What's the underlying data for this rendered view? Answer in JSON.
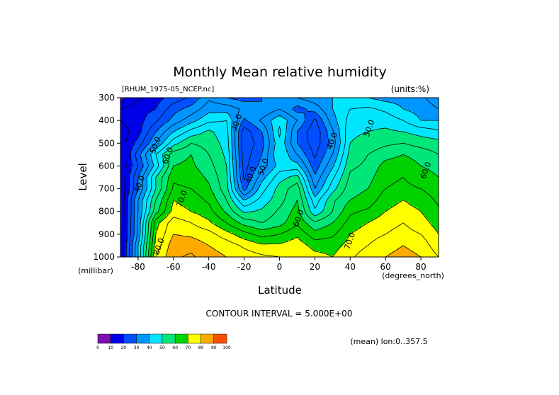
{
  "chart_data": {
    "type": "contour",
    "title": "Monthly Mean relative humidity",
    "dataset_label": "[RHUM_1975-05_NCEP.nc]",
    "units_label": "(units:%)",
    "xlabel": "Latitude",
    "x_units": "(degrees_north)",
    "ylabel": "Level",
    "y_units": "(millibar)",
    "xlim": [
      -90,
      90
    ],
    "ylim": [
      1000,
      300
    ],
    "x_ticks": [
      -80,
      -60,
      -40,
      -20,
      0,
      20,
      40,
      60,
      80
    ],
    "y_ticks": [
      300,
      400,
      500,
      600,
      700,
      800,
      900,
      1000
    ],
    "contour_interval_text": "CONTOUR INTERVAL = 5.000E+00",
    "mean_note": "(mean) lon:0..357.5",
    "grid_lat": [
      -90,
      -80,
      -70,
      -60,
      -50,
      -40,
      -30,
      -20,
      -10,
      0,
      10,
      20,
      30,
      40,
      50,
      60,
      70,
      80,
      90
    ],
    "grid_lev": [
      300,
      350,
      400,
      450,
      500,
      550,
      600,
      650,
      700,
      750,
      800,
      850,
      900,
      950,
      1000
    ],
    "values": [
      [
        8,
        14,
        18,
        22,
        26,
        34,
        30,
        28,
        30,
        34,
        35,
        38,
        40,
        40,
        40,
        38,
        38,
        36,
        32
      ],
      [
        15,
        18,
        20,
        28,
        32,
        38,
        38,
        34,
        30,
        35,
        28,
        32,
        40,
        45,
        46,
        44,
        40,
        38,
        35
      ],
      [
        15,
        18,
        24,
        32,
        38,
        44,
        45,
        29,
        36,
        44,
        35,
        24,
        38,
        47,
        48,
        48,
        45,
        40,
        40
      ],
      [
        12,
        18,
        30,
        40,
        47,
        51,
        47,
        22,
        30,
        46,
        30,
        21,
        34,
        49,
        50,
        51,
        50,
        48,
        46
      ],
      [
        12,
        22,
        35,
        48,
        55,
        53,
        48,
        21,
        28,
        44,
        30,
        22,
        32,
        50,
        52,
        54,
        55,
        53,
        52
      ],
      [
        10,
        28,
        45,
        58,
        60,
        55,
        49,
        22,
        30,
        45,
        35,
        24,
        35,
        52,
        55,
        58,
        60,
        58,
        55
      ],
      [
        10,
        25,
        42,
        60,
        61,
        57,
        50,
        23,
        32,
        42,
        42,
        27,
        39,
        54,
        56,
        62,
        63,
        60,
        58
      ],
      [
        10,
        30,
        50,
        64,
        63,
        59,
        51,
        24,
        38,
        48,
        52,
        31,
        44,
        56,
        58,
        64,
        65,
        63,
        60
      ],
      [
        10,
        30,
        50,
        66,
        65,
        61,
        52,
        28,
        43,
        52,
        58,
        35,
        48,
        58,
        60,
        65,
        66,
        65,
        62
      ],
      [
        10,
        35,
        55,
        70,
        68,
        64,
        55,
        40,
        47,
        53,
        60,
        42,
        54,
        60,
        62,
        68,
        70,
        68,
        64
      ],
      [
        10,
        35,
        58,
        72,
        70,
        67,
        59,
        49,
        51,
        56,
        62,
        46,
        55,
        64,
        66,
        70,
        72,
        70,
        66
      ],
      [
        10,
        36,
        68,
        78,
        75,
        71,
        65,
        58,
        55,
        58,
        64,
        56,
        60,
        67,
        70,
        73,
        75,
        72,
        68
      ],
      [
        10,
        36,
        70,
        80,
        79,
        77,
        72,
        67,
        63,
        65,
        69,
        62,
        64,
        70,
        73,
        75,
        77,
        75,
        70
      ],
      [
        10,
        40,
        72,
        83,
        83,
        80,
        78,
        74,
        71,
        71,
        73,
        68,
        68,
        72,
        75,
        78,
        80,
        78,
        72
      ],
      [
        10,
        40,
        75,
        84,
        86,
        82,
        80,
        78,
        76,
        75,
        75,
        72,
        70,
        74,
        78,
        80,
        82,
        80,
        75
      ]
    ],
    "contour_labels": [
      {
        "text": "30.0",
        "lat": -24,
        "lev": 410
      },
      {
        "text": "40.0",
        "lat": -16,
        "lev": 640
      },
      {
        "text": "50.0",
        "lat": -9,
        "lev": 605
      },
      {
        "text": "40.0",
        "lat": 30,
        "lev": 490
      },
      {
        "text": "50.0",
        "lat": 51,
        "lev": 435
      },
      {
        "text": "60.0",
        "lat": 83,
        "lev": 620
      },
      {
        "text": "50.0",
        "lat": -70,
        "lev": 510
      },
      {
        "text": "60.0",
        "lat": -63,
        "lev": 555
      },
      {
        "text": "70.0",
        "lat": -55,
        "lev": 745
      },
      {
        "text": "40.0",
        "lat": -79,
        "lev": 680
      },
      {
        "text": "60.0",
        "lat": 11,
        "lev": 830
      },
      {
        "text": "70.0",
        "lat": 40,
        "lev": 930
      },
      {
        "text": "80.0",
        "lat": -68,
        "lev": 955
      }
    ],
    "colorbar": {
      "levels": [
        0,
        10,
        20,
        30,
        40,
        50,
        60,
        70,
        80,
        90,
        100
      ],
      "colors": [
        "#7a10b4",
        "#0000e6",
        "#0050ff",
        "#0096ff",
        "#00e6ff",
        "#00e678",
        "#00d200",
        "#ffff00",
        "#ffaa00",
        "#ff5000",
        "#ff0000"
      ]
    }
  }
}
